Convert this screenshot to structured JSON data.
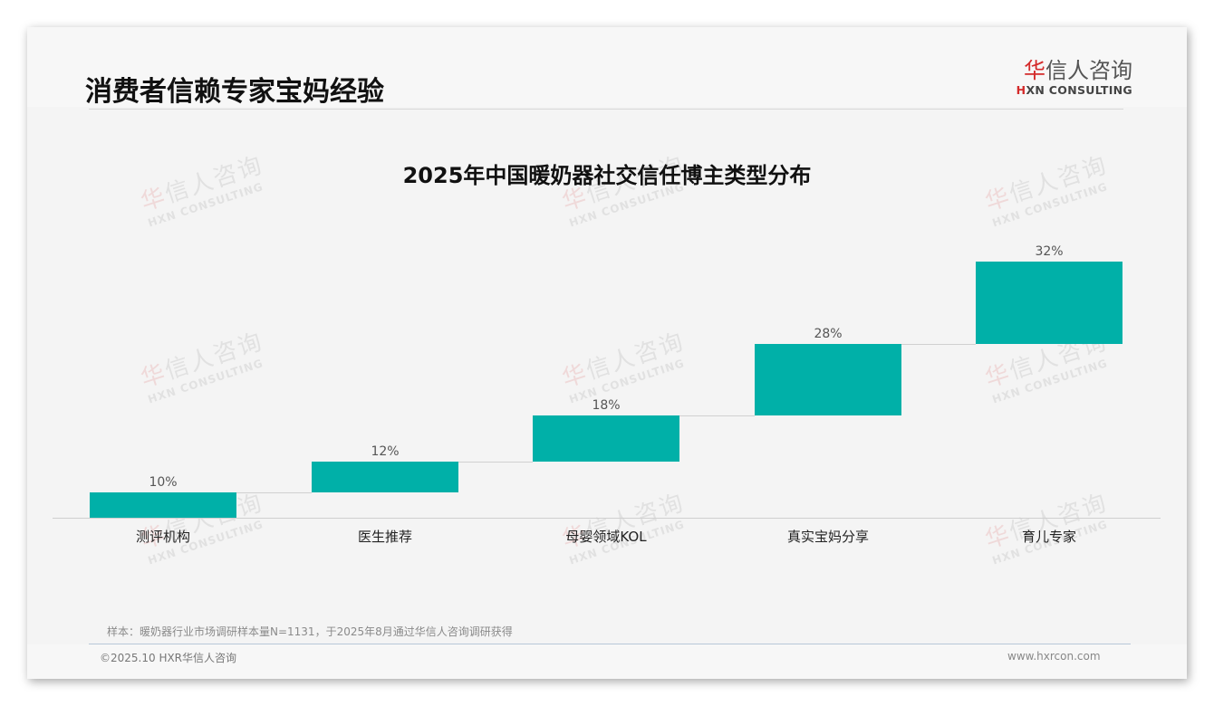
{
  "header": {
    "title": "消费者信赖专家宝妈经验",
    "logo_cn_prefix": "华",
    "logo_cn_rest": "信人咨询",
    "logo_en_prefix": "H",
    "logo_en_rest": "XN CONSULTING"
  },
  "watermark": {
    "cn_prefix": "华",
    "cn_rest": "信人咨询",
    "en": "HXN CONSULTING"
  },
  "chart_data": {
    "type": "bar",
    "subtype": "waterfall",
    "title": "2025年中国暖奶器社交信任博主类型分布",
    "categories": [
      "测评机构",
      "医生推荐",
      "母婴领域KOL",
      "真实宝妈分享",
      "育儿专家"
    ],
    "values": [
      10,
      12,
      18,
      28,
      32
    ],
    "value_labels": [
      "10%",
      "12%",
      "18%",
      "28%",
      "32%"
    ],
    "unit": "%",
    "xlabel": "",
    "ylabel": "",
    "ylim": [
      0,
      100
    ],
    "grid": false,
    "legend": "none",
    "bar_color": "#00b0a8"
  },
  "footer": {
    "note": "样本：暖奶器行业市场调研样本量N=1131，于2025年8月通过华信人咨询调研获得",
    "copyright": "©2025.10 HXR华信人咨询",
    "website": "www.hxrcon.com"
  }
}
